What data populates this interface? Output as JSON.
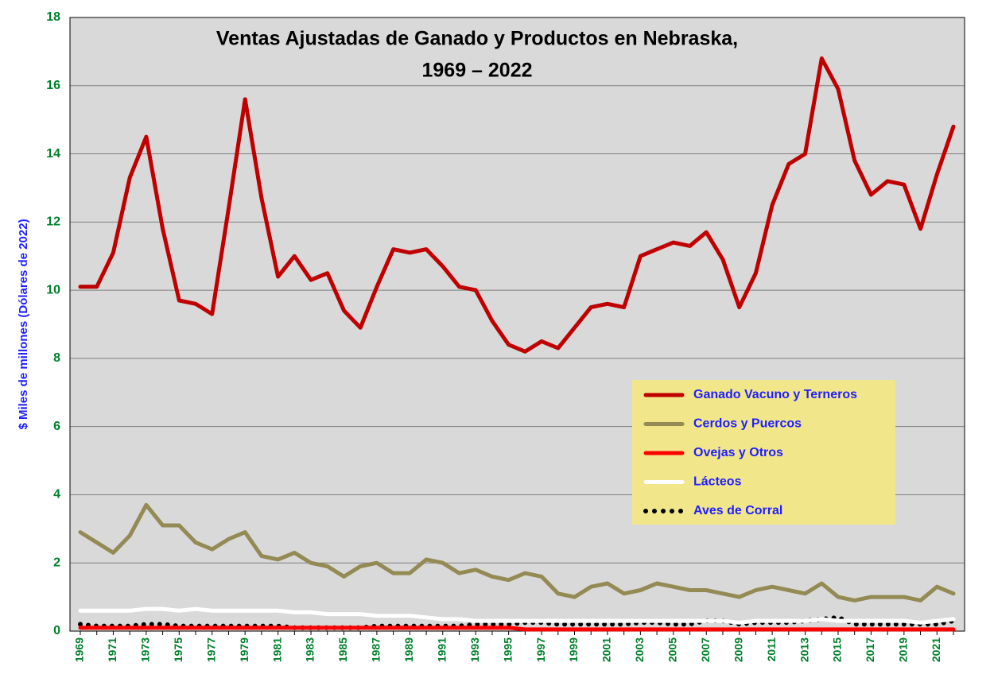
{
  "chart_data": {
    "type": "line",
    "title": [
      "Ventas Ajustadas de Ganado y Productos en Nebraska,",
      "1969 – 2022"
    ],
    "y_label": "$ Miles de millones (Dólares de 2022)",
    "categories": [
      "1969",
      null,
      "1971",
      null,
      "1973",
      null,
      "1975",
      null,
      "1977",
      null,
      "1979",
      null,
      "1981",
      null,
      "1983",
      null,
      "1985",
      null,
      "1987",
      null,
      "1989",
      null,
      "1991",
      null,
      "1993",
      null,
      "1995",
      null,
      "1997",
      null,
      "1999",
      null,
      "2001",
      null,
      "2003",
      null,
      "2005",
      null,
      "2007",
      null,
      "2009",
      null,
      "2011",
      null,
      "2013",
      null,
      "2015",
      null,
      "2017",
      null,
      "2019",
      null,
      "2021",
      null
    ],
    "ylim": [
      0,
      18
    ],
    "yticks": [
      0,
      2,
      4,
      6,
      8,
      10,
      12,
      14,
      16,
      18
    ],
    "grid": true,
    "legend": "lower right",
    "series": [
      {
        "name": "Ganado Vacuno y Terneros",
        "color": "#c00000",
        "style": "solid",
        "values": [
          10.1,
          10.1,
          11.1,
          13.3,
          14.5,
          11.8,
          9.7,
          9.6,
          9.3,
          12.4,
          15.6,
          12.7,
          10.4,
          11.0,
          10.3,
          10.5,
          9.4,
          8.9,
          10.1,
          11.2,
          11.1,
          11.2,
          10.7,
          10.1,
          10.0,
          9.1,
          8.4,
          8.2,
          8.5,
          8.3,
          8.9,
          9.5,
          9.6,
          9.5,
          11.0,
          11.2,
          11.4,
          11.3,
          11.7,
          10.9,
          9.5,
          10.5,
          12.5,
          13.7,
          14.0,
          16.8,
          15.9,
          13.8,
          12.8,
          13.2,
          13.1,
          11.8,
          13.4,
          14.8
        ]
      },
      {
        "name": "Cerdos y Puercos",
        "color": "#948a54",
        "style": "solid",
        "values": [
          2.9,
          2.6,
          2.3,
          2.8,
          3.7,
          3.1,
          3.1,
          2.6,
          2.4,
          2.7,
          2.9,
          2.2,
          2.1,
          2.3,
          2.0,
          1.9,
          1.6,
          1.9,
          2.0,
          1.7,
          1.7,
          2.1,
          2.0,
          1.7,
          1.8,
          1.6,
          1.5,
          1.7,
          1.6,
          1.1,
          1.0,
          1.3,
          1.4,
          1.1,
          1.2,
          1.4,
          1.3,
          1.2,
          1.2,
          1.1,
          1.0,
          1.2,
          1.3,
          1.2,
          1.1,
          1.4,
          1.0,
          0.9,
          1.0,
          1.0,
          1.0,
          0.9,
          1.3,
          1.1
        ]
      },
      {
        "name": "Ovejas y Otros",
        "color": "#ff0000",
        "style": "solid",
        "values": [
          0.1,
          0.1,
          0.1,
          0.1,
          0.1,
          0.1,
          0.1,
          0.1,
          0.1,
          0.1,
          0.1,
          0.1,
          0.1,
          0.1,
          0.1,
          0.1,
          0.1,
          0.1,
          0.1,
          0.1,
          0.1,
          0.1,
          0.1,
          0.1,
          0.1,
          0.1,
          0.1,
          0.05,
          0.05,
          0.05,
          0.05,
          0.05,
          0.05,
          0.05,
          0.05,
          0.05,
          0.05,
          0.05,
          0.05,
          0.05,
          0.05,
          0.05,
          0.05,
          0.05,
          0.05,
          0.05,
          0.05,
          0.05,
          0.05,
          0.05,
          0.05,
          0.05,
          0.05,
          0.05
        ]
      },
      {
        "name": "Lácteos",
        "color": "#ffffff",
        "style": "solid",
        "values": [
          0.6,
          0.6,
          0.6,
          0.6,
          0.65,
          0.65,
          0.6,
          0.65,
          0.6,
          0.6,
          0.6,
          0.6,
          0.6,
          0.55,
          0.55,
          0.5,
          0.5,
          0.5,
          0.45,
          0.45,
          0.45,
          0.4,
          0.35,
          0.35,
          0.3,
          0.3,
          0.3,
          0.3,
          0.3,
          0.3,
          0.3,
          0.3,
          0.3,
          0.3,
          0.3,
          0.3,
          0.3,
          0.3,
          0.3,
          0.3,
          0.25,
          0.3,
          0.3,
          0.3,
          0.3,
          0.35,
          0.3,
          0.3,
          0.3,
          0.3,
          0.3,
          0.25,
          0.3,
          0.35
        ]
      },
      {
        "name": "Aves de Corral",
        "color": "#000000",
        "style": "dotted",
        "values": [
          0.2,
          0.15,
          0.15,
          0.15,
          0.2,
          0.2,
          0.15,
          0.15,
          0.15,
          0.15,
          0.15,
          0.15,
          0.15,
          0.1,
          0.1,
          0.1,
          0.1,
          0.1,
          0.15,
          0.15,
          0.15,
          0.15,
          0.15,
          0.15,
          0.2,
          0.2,
          0.2,
          0.25,
          0.25,
          0.2,
          0.2,
          0.2,
          0.2,
          0.2,
          0.25,
          0.25,
          0.2,
          0.2,
          0.3,
          0.3,
          0.2,
          0.25,
          0.25,
          0.25,
          0.3,
          0.35,
          0.4,
          0.2,
          0.2,
          0.2,
          0.2,
          0.2,
          0.2,
          0.3
        ]
      }
    ]
  }
}
